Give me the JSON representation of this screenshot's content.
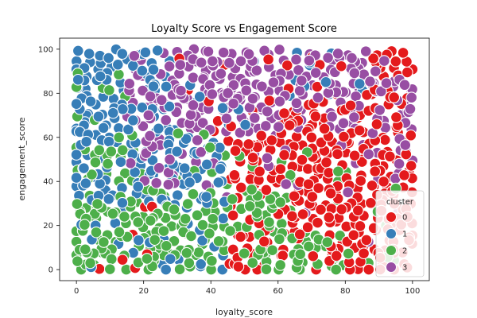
{
  "chart_data": {
    "type": "scatter",
    "title": "Loyalty Score vs Engagement Score",
    "xlabel": "loyalty_score",
    "ylabel": "engagement_score",
    "xlim": [
      -5,
      105
    ],
    "ylim": [
      -5,
      105
    ],
    "xticks": [
      0,
      20,
      40,
      60,
      80,
      100
    ],
    "yticks": [
      0,
      20,
      40,
      60,
      80,
      100
    ],
    "grid": false,
    "legend": {
      "title": "cluster",
      "placement": "lower-right",
      "entries": [
        "0",
        "1",
        "2",
        "3"
      ]
    },
    "colors": {
      "0": "#e41a1c",
      "1": "#377eb8",
      "2": "#4daf4a",
      "3": "#984ea3"
    },
    "sampling": {
      "note": "regions approximated from screenshot",
      "grid_step": 3.4,
      "jitter": 1.6
    },
    "series": [
      {
        "name": "0",
        "region": "loyalty_score high, engagement_score low-mid (lower right); upper right strip",
        "x_range": [
          40,
          100
        ],
        "y_range": [
          0,
          100
        ]
      },
      {
        "name": "1",
        "region": "loyalty_score low, engagement_score mid-high (upper left)",
        "x_range": [
          0,
          55
        ],
        "y_range": [
          10,
          100
        ]
      },
      {
        "name": "2",
        "region": "loyalty_score low-mid, engagement_score low (lower left)",
        "x_range": [
          0,
          90
        ],
        "y_range": [
          0,
          80
        ]
      },
      {
        "name": "3",
        "region": "loyalty_score mid-high, engagement_score high (top center-right)",
        "x_range": [
          15,
          100
        ],
        "y_range": [
          40,
          100
        ]
      }
    ]
  }
}
